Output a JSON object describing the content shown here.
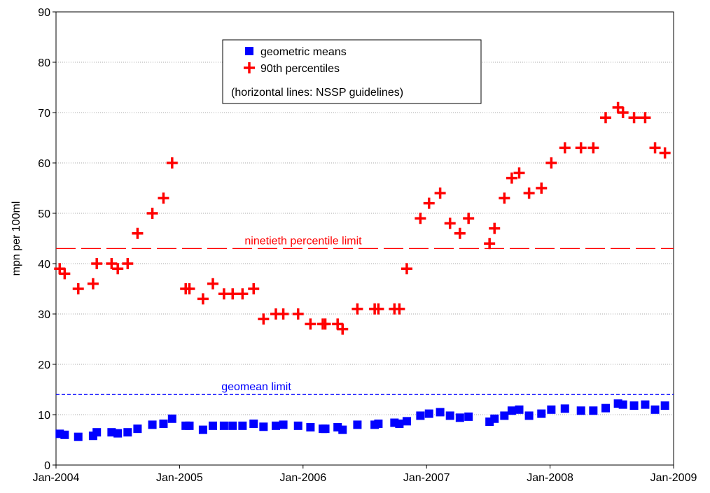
{
  "chart_data": {
    "type": "scatter",
    "y_label": "mpn per 100ml",
    "x": [
      2004.03,
      2004.07,
      2004.18,
      2004.3,
      2004.33,
      2004.45,
      2004.5,
      2004.58,
      2004.66,
      2004.78,
      2004.87,
      2004.94,
      2005.05,
      2005.08,
      2005.19,
      2005.27,
      2005.36,
      2005.43,
      2005.51,
      2005.6,
      2005.68,
      2005.78,
      2005.84,
      2005.96,
      2006.06,
      2006.16,
      2006.18,
      2006.28,
      2006.32,
      2006.44,
      2006.58,
      2006.61,
      2006.74,
      2006.78,
      2006.84,
      2006.95,
      2007.02,
      2007.11,
      2007.19,
      2007.27,
      2007.34,
      2007.51,
      2007.55,
      2007.63,
      2007.69,
      2007.75,
      2007.83,
      2007.93,
      2008.01,
      2008.12,
      2008.25,
      2008.35,
      2008.45,
      2008.55,
      2008.59,
      2008.68,
      2008.77,
      2008.85,
      2008.93
    ],
    "series": [
      {
        "name": "geometric means",
        "color": "#0000ff",
        "marker": "square",
        "values": [
          6.2,
          6,
          5.6,
          5.8,
          6.5,
          6.5,
          6.3,
          6.5,
          7.2,
          8,
          8.2,
          9.2,
          7.8,
          7.8,
          7,
          7.8,
          7.8,
          7.8,
          7.8,
          8.2,
          7.6,
          7.8,
          8,
          7.8,
          7.5,
          7.2,
          7.2,
          7.5,
          7,
          8,
          8,
          8.2,
          8.4,
          8.2,
          8.7,
          9.8,
          10.2,
          10.5,
          9.8,
          9.4,
          9.6,
          8.6,
          9.2,
          9.8,
          10.8,
          11,
          9.8,
          10.2,
          11,
          11.2,
          10.8,
          10.8,
          11.3,
          12.2,
          12,
          11.8,
          12,
          11,
          11.8
        ]
      },
      {
        "name": "90th percentiles",
        "color": "#ff0000",
        "marker": "plus",
        "values": [
          39,
          38,
          35,
          36,
          40,
          40,
          39,
          40,
          46,
          50,
          53,
          60,
          35,
          35,
          33,
          36,
          34,
          34,
          34,
          35,
          29,
          30,
          30,
          30,
          28,
          28,
          28,
          28,
          27,
          31,
          31,
          31,
          31,
          31,
          39,
          49,
          52,
          54,
          48,
          46,
          49,
          44,
          47,
          53,
          57,
          58,
          54,
          55,
          60,
          63,
          63,
          63,
          69,
          71,
          70,
          69,
          69,
          63,
          62
        ]
      }
    ],
    "legend_note": "(horizontal lines: NSSP guidelines)",
    "reference_lines": [
      {
        "label": "ninetieth percentile limit",
        "value": 43,
        "color": "#ff0000",
        "style": "long-dash"
      },
      {
        "label": "geomean limit",
        "value": 14,
        "color": "#0000ff",
        "style": "short-dash"
      }
    ],
    "xlim": [
      2004,
      2009
    ],
    "xticks": [
      {
        "value": 2004,
        "label": "Jan-2004"
      },
      {
        "value": 2005,
        "label": "Jan-2005"
      },
      {
        "value": 2006,
        "label": "Jan-2006"
      },
      {
        "value": 2007,
        "label": "Jan-2007"
      },
      {
        "value": 2008,
        "label": "Jan-2008"
      },
      {
        "value": 2009,
        "label": "Jan-2009"
      }
    ],
    "ylim": [
      0,
      90
    ],
    "yticks": [
      0,
      10,
      20,
      30,
      40,
      50,
      60,
      70,
      80,
      90
    ],
    "grid": true
  }
}
